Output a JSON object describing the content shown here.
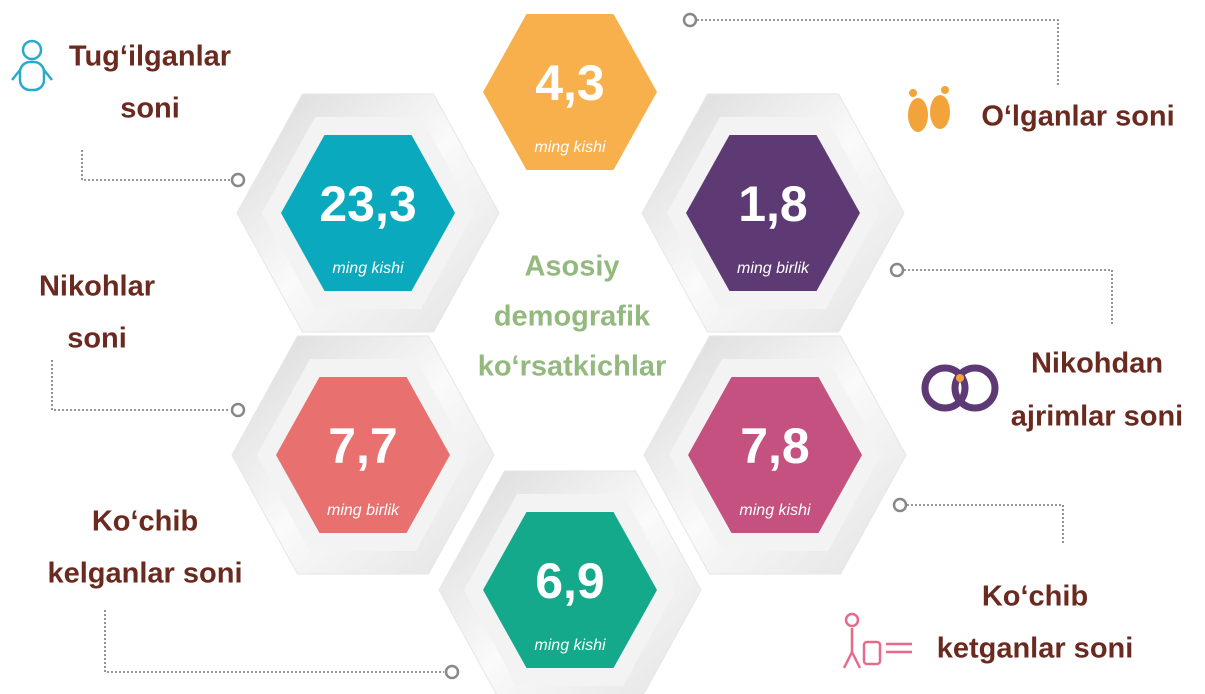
{
  "title": [
    "Asosiy",
    "demografik",
    "ko‘rsatkichlar"
  ],
  "items": [
    {
      "label": [
        "Tug‘ilganlar",
        "soni"
      ],
      "value": "23,3",
      "unit": "ming kishi",
      "color": "#0ba9be"
    },
    {
      "label": [
        "O‘lganlar soni"
      ],
      "value": "4,3",
      "unit": "ming kishi",
      "color": "#f7b04c"
    },
    {
      "label": [
        "Nikohlar",
        "soni"
      ],
      "value": "7,7",
      "unit": "ming birlik",
      "color": "#e8706f"
    },
    {
      "label": [
        "Nikohdan",
        "ajrimlar soni"
      ],
      "value": "1,8",
      "unit": "ming birlik",
      "color": "#5d3a74"
    },
    {
      "label": [
        "Ko‘chib",
        "kelganlar soni"
      ],
      "value": "6,9",
      "unit": "ming kishi",
      "color": "#14a98a"
    },
    {
      "label": [
        "Ko‘chib",
        "ketganlar soni"
      ],
      "value": "7,8",
      "unit": "ming kishi",
      "color": "#c4517f"
    }
  ]
}
